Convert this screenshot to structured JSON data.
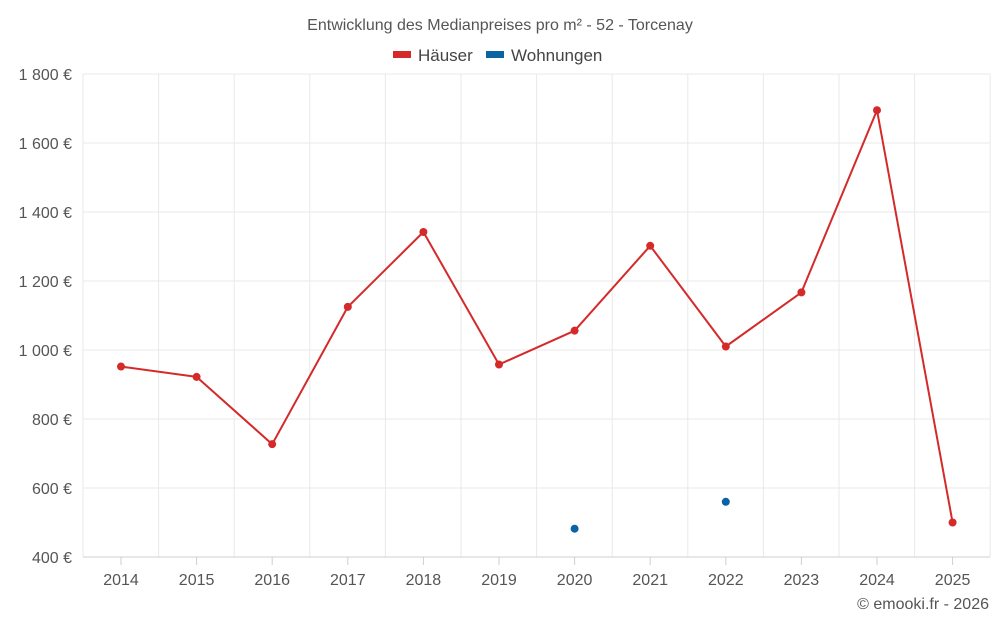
{
  "chart_data": {
    "type": "line",
    "title": "Entwicklung des Medianpreises pro m² - 52 - Torcenay",
    "categories": [
      "2014",
      "2015",
      "2016",
      "2017",
      "2018",
      "2019",
      "2020",
      "2021",
      "2022",
      "2023",
      "2024",
      "2025"
    ],
    "series": [
      {
        "name": "Häuser",
        "color": "#d42a2a",
        "values": [
          952,
          922,
          727,
          1125,
          1342,
          958,
          1056,
          1302,
          1010,
          1167,
          1695,
          500
        ]
      },
      {
        "name": "Wohnungen",
        "color": "#0a64a4",
        "values": [
          null,
          null,
          null,
          null,
          null,
          null,
          482,
          null,
          560,
          null,
          null,
          null
        ]
      }
    ],
    "ylim": [
      400,
      1800
    ],
    "yticks": [
      400,
      600,
      800,
      1000,
      1200,
      1400,
      1600,
      1800
    ],
    "ytick_labels": [
      "400 €",
      "600 €",
      "800 €",
      "1 000 €",
      "1 200 €",
      "1 400 €",
      "1 600 €",
      "1 800 €"
    ],
    "xlabel": "",
    "ylabel": "",
    "grid": true,
    "legend_position": "top-center"
  },
  "credit": "© emooki.fr - 2026"
}
